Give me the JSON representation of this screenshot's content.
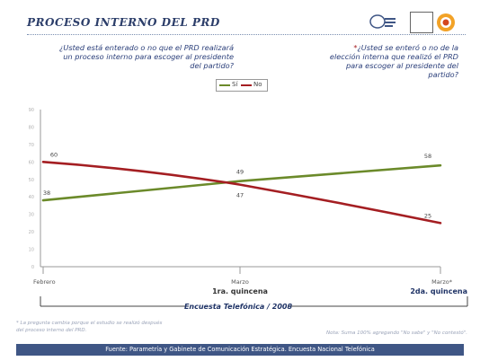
{
  "header": {
    "title": "PROCESO INTERNO DEL PRD"
  },
  "questions": {
    "left": "¿Usted está enterado o no que el PRD realizará un proceso interno para escoger al presidente del partido?",
    "right_marker": "*",
    "right": "¿Usted se enteró o no de la elección interna que realizó el PRD para escoger al presidente del partido?"
  },
  "colors": {
    "si": "#6b8a2a",
    "no": "#a41e22",
    "axis": "#999999",
    "banner_text": "#1f3366",
    "source_bar": "#3f5685"
  },
  "chart_data": {
    "type": "line",
    "x": [
      "Febrero",
      "Marzo",
      "Marzo*"
    ],
    "sublabels": [
      "",
      "1ra. quincena",
      "2da. quincena"
    ],
    "series": [
      {
        "name": "Sí",
        "values": [
          38,
          49,
          58
        ]
      },
      {
        "name": "No",
        "values": [
          60,
          47,
          25
        ]
      }
    ],
    "data_labels": {
      "Sí": [
        "38",
        "49",
        "58"
      ],
      "No": [
        "60",
        "47",
        "25"
      ]
    },
    "y_ticks": [
      "0",
      "10",
      "20",
      "30",
      "40",
      "50",
      "60",
      "70",
      "80",
      "90"
    ],
    "ylim": [
      0,
      90
    ],
    "legend_position": "top-center",
    "banner": "Encuesta Telefónica / 2008"
  },
  "footer": {
    "footnote": "* La pregunta cambia porque el estudio se realizó después del proceso interno del PRD.",
    "note": "Nota: Suma 100% agregando \"No sabe\" y \"No contestó\".",
    "source": "Fuente: Parametría y Gabinete de Comunicación Estratégica. Encuesta Nacional Telefónica"
  }
}
